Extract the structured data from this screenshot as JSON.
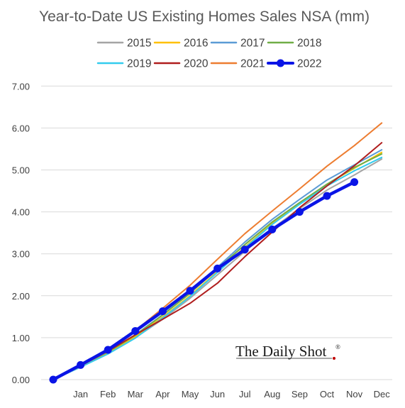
{
  "chart_data": {
    "type": "line",
    "title": "Year-to-Date US Existing Homes Sales NSA (mm)",
    "categories": [
      "",
      "Jan",
      "Feb",
      "Mar",
      "Apr",
      "May",
      "Jun",
      "Jul",
      "Aug",
      "Sep",
      "Oct",
      "Nov",
      "Dec"
    ],
    "ylim": [
      0,
      7
    ],
    "yticks": [
      "0.00",
      "1.00",
      "2.00",
      "3.00",
      "4.00",
      "5.00",
      "6.00",
      "7.00"
    ],
    "grid": true,
    "legend_position": "top",
    "series": [
      {
        "name": "2015",
        "color": "#A5A5A5",
        "width": 2,
        "markers": false,
        "values": [
          0,
          0.3,
          0.62,
          1.0,
          1.44,
          1.94,
          2.5,
          3.06,
          3.6,
          4.08,
          4.52,
          4.88,
          5.26
        ]
      },
      {
        "name": "2016",
        "color": "#FFC000",
        "width": 2,
        "markers": false,
        "values": [
          0,
          0.31,
          0.64,
          1.03,
          1.49,
          2.0,
          2.58,
          3.16,
          3.72,
          4.2,
          4.66,
          5.04,
          5.42
        ]
      },
      {
        "name": "2017",
        "color": "#5B9BD5",
        "width": 2,
        "markers": false,
        "values": [
          0,
          0.33,
          0.66,
          1.07,
          1.55,
          2.08,
          2.68,
          3.28,
          3.82,
          4.3,
          4.76,
          5.12,
          5.48
        ]
      },
      {
        "name": "2018",
        "color": "#70AD47",
        "width": 2,
        "markers": false,
        "values": [
          0,
          0.33,
          0.66,
          1.06,
          1.54,
          2.06,
          2.64,
          3.22,
          3.76,
          4.22,
          4.66,
          5.06,
          5.38
        ]
      },
      {
        "name": "2019",
        "color": "#33CCEE",
        "width": 2,
        "markers": false,
        "values": [
          0,
          0.3,
          0.61,
          0.99,
          1.47,
          1.98,
          2.56,
          3.14,
          3.7,
          4.18,
          4.62,
          4.98,
          5.3
        ]
      },
      {
        "name": "2020",
        "color": "#B01E1E",
        "width": 2,
        "markers": false,
        "values": [
          0,
          0.33,
          0.68,
          1.07,
          1.44,
          1.82,
          2.3,
          2.93,
          3.52,
          4.1,
          4.62,
          5.1,
          5.65
        ]
      },
      {
        "name": "2021",
        "color": "#ED7D31",
        "width": 2,
        "markers": false,
        "values": [
          0,
          0.32,
          0.68,
          1.17,
          1.7,
          2.25,
          2.87,
          3.48,
          4.02,
          4.55,
          5.09,
          5.58,
          6.12
        ]
      },
      {
        "name": "2022",
        "color": "#0A14E6",
        "width": 4.5,
        "markers": true,
        "values": [
          0,
          0.35,
          0.71,
          1.16,
          1.63,
          2.12,
          2.65,
          3.1,
          3.58,
          4.0,
          4.38,
          4.71,
          null
        ]
      }
    ]
  },
  "brand": {
    "name": "The Daily Shot",
    "reg": "®"
  }
}
